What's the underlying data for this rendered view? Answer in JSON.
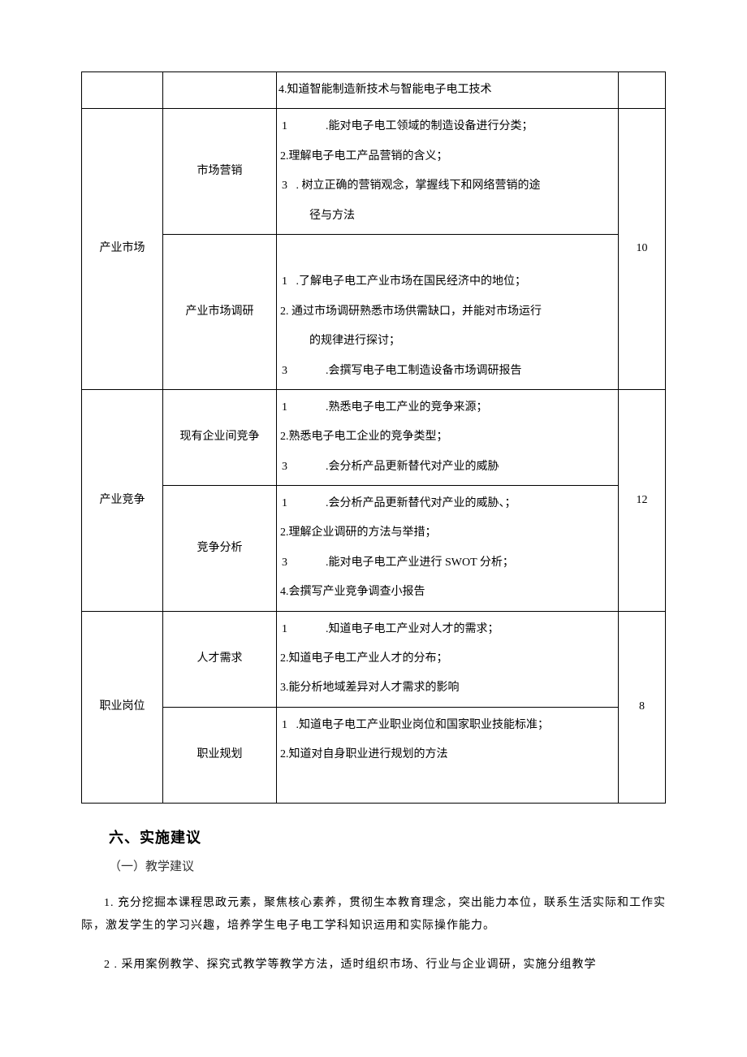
{
  "table": {
    "row0_item": "4.知道智能制造新技术与智能电子电工技术",
    "sections": [
      {
        "name": "产业市场",
        "hours": "10",
        "subsections": [
          {
            "name": "市场营销",
            "items": [
              {
                "num": "1",
                "numStyle": "wide",
                "text": ".能对电子电工领域的制造设备进行分类；"
              },
              {
                "num": "2.",
                "numStyle": "inline",
                "text": "理解电子电工产品营销的含义；"
              },
              {
                "num": "3",
                "numStyle": "narrow",
                "text": " . 树立正确的营销观念，掌握线下和网络营销的途"
              },
              {
                "num": "",
                "numStyle": "indent",
                "text": "径与方法"
              }
            ]
          },
          {
            "name": "产业市场调研",
            "items": [
              {
                "num": "",
                "numStyle": "blank",
                "text": ""
              },
              {
                "num": "1",
                "numStyle": "narrow",
                "text": " .了解电子电工产业市场在国民经济中的地位；"
              },
              {
                "num": "2.",
                "numStyle": "inline",
                "text": " 通过市场调研熟悉市场供需缺口，并能对市场运行"
              },
              {
                "num": "",
                "numStyle": "indent",
                "text": "的规律进行探讨；"
              },
              {
                "num": "3",
                "numStyle": "wide",
                "text": ".会撰写电子电工制造设备市场调研报告"
              }
            ]
          }
        ]
      },
      {
        "name": "产业竞争",
        "hours": "12",
        "subsections": [
          {
            "name": "现有企业间竞争",
            "items": [
              {
                "num": "1",
                "numStyle": "wide",
                "text": ".熟悉电子电工产业的竞争来源；"
              },
              {
                "num": "2.",
                "numStyle": "inline",
                "text": "熟悉电子电工企业的竞争类型；"
              },
              {
                "num": "3",
                "numStyle": "wide",
                "text": ".会分析产品更新替代对产业的威胁"
              }
            ]
          },
          {
            "name": "竞争分析",
            "items": [
              {
                "num": "1",
                "numStyle": "wide",
                "text": ".会分析产品更新替代对产业的威胁、；"
              },
              {
                "num": "2.",
                "numStyle": "inline",
                "text": "理解企业调研的方法与举措；"
              },
              {
                "num": "3",
                "numStyle": "wide",
                "text": ".能对电子电工产业进行 SWOT 分析；"
              },
              {
                "num": "4.",
                "numStyle": "inline",
                "text": "会撰写产业竞争调查小报告"
              }
            ]
          }
        ]
      },
      {
        "name": "职业岗位",
        "hours": "8",
        "subsections": [
          {
            "name": "人才需求",
            "items": [
              {
                "num": "1",
                "numStyle": "wide",
                "text": ".知道电子电工产业对人才的需求；"
              },
              {
                "num": "2.",
                "numStyle": "inline",
                "text": "知道电子电工产业人才的分布；"
              },
              {
                "num": "3.",
                "numStyle": "inline",
                "text": "能分析地域差异对人才需求的影响"
              }
            ]
          },
          {
            "name": "职业规划",
            "items": [
              {
                "num": "1",
                "numStyle": "narrow",
                "text": " .知道电子电工产业职业岗位和国家职业技能标准；"
              },
              {
                "num": "2.",
                "numStyle": "inline",
                "text": "知道对自身职业进行规划的方法"
              },
              {
                "num": "",
                "numStyle": "blank",
                "text": ""
              }
            ]
          }
        ]
      }
    ]
  },
  "heading": "六、实施建议",
  "subheading": "（一）教学建议",
  "para1": "1. 充分挖掘本课程思政元素，聚焦核心素养，贯彻生本教育理念，突出能力本位，联系生活实际和工作实际，激发学生的学习兴趣，培养学生电子电工学科知识运用和实际操作能力。",
  "para2": "2  . 采用案例教学、探究式教学等教学方法，适时组织市场、行业与企业调研，实施分组教学"
}
